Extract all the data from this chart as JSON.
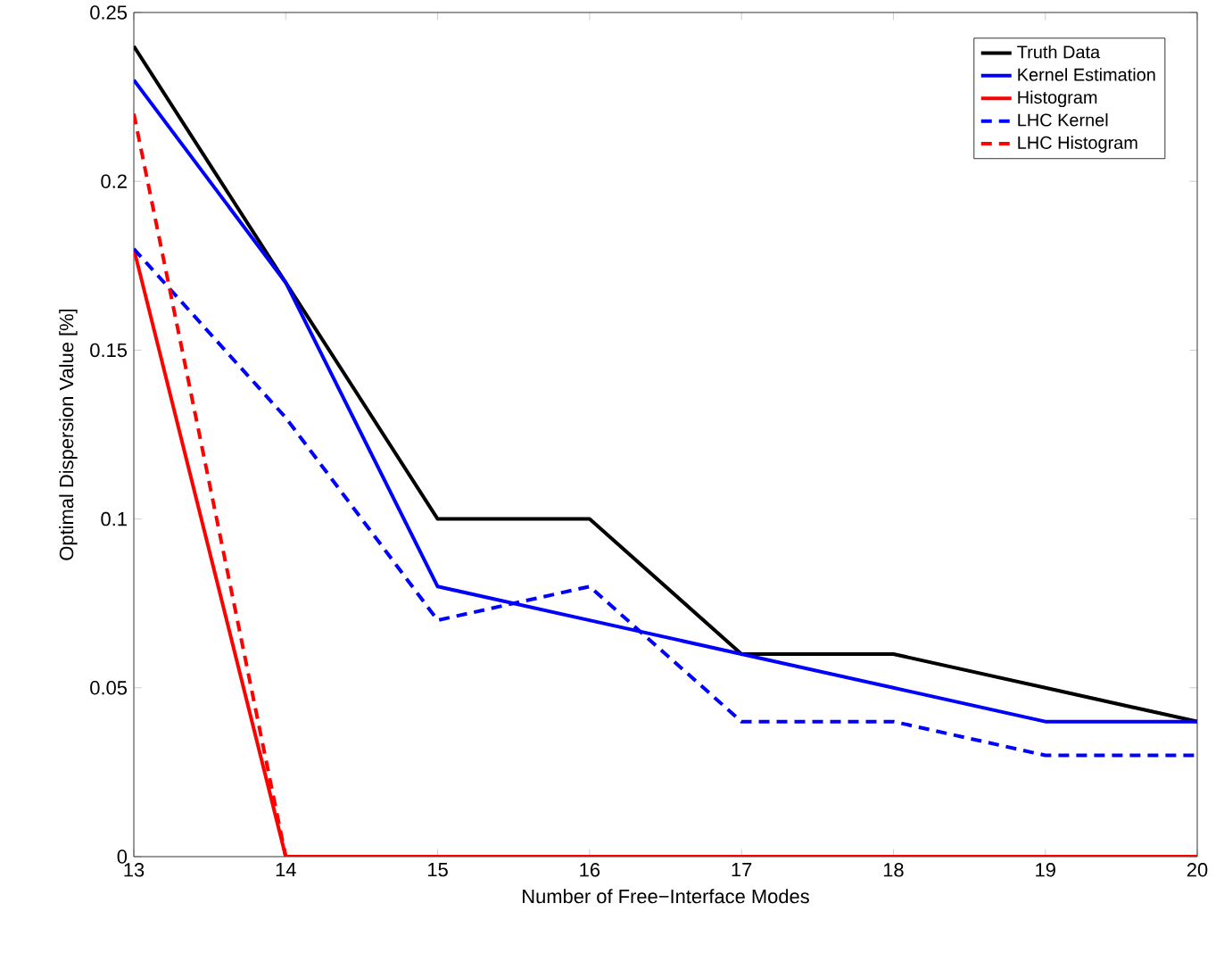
{
  "chart_data": {
    "type": "line",
    "xlabel": "Number of Free−Interface Modes",
    "ylabel": "Optimal Dispersion Value [%]",
    "x": [
      13,
      14,
      15,
      16,
      17,
      18,
      19,
      20
    ],
    "series": [
      {
        "name": "Truth Data",
        "color": "#000000",
        "line_style": "solid",
        "values": [
          0.24,
          0.17,
          0.1,
          0.1,
          0.06,
          0.06,
          0.05,
          0.04
        ]
      },
      {
        "name": "Kernel Estimation",
        "color": "#0000ff",
        "line_style": "solid",
        "values": [
          0.23,
          0.17,
          0.08,
          0.07,
          0.06,
          0.05,
          0.04,
          0.04
        ]
      },
      {
        "name": "Histogram",
        "color": "#ff0000",
        "line_style": "solid",
        "values": [
          0.18,
          0,
          0,
          0,
          0,
          0,
          0,
          0
        ]
      },
      {
        "name": "LHC Kernel",
        "color": "#0000ff",
        "line_style": "dashed",
        "values": [
          0.18,
          0.13,
          0.07,
          0.08,
          0.04,
          0.04,
          0.03,
          0.03
        ]
      },
      {
        "name": "LHC Histogram",
        "color": "#ff0000",
        "line_style": "dashed",
        "values": [
          0.22,
          0,
          null,
          null,
          null,
          null,
          null,
          null
        ]
      }
    ],
    "xlim": [
      13,
      20
    ],
    "xticks": [
      13,
      14,
      15,
      16,
      17,
      18,
      19,
      20
    ],
    "ylim": [
      0,
      0.25
    ],
    "yticks": [
      0,
      0.05,
      0.1,
      0.15,
      0.2,
      0.25
    ],
    "legend": "top right",
    "grid": false,
    "marker": "none"
  }
}
